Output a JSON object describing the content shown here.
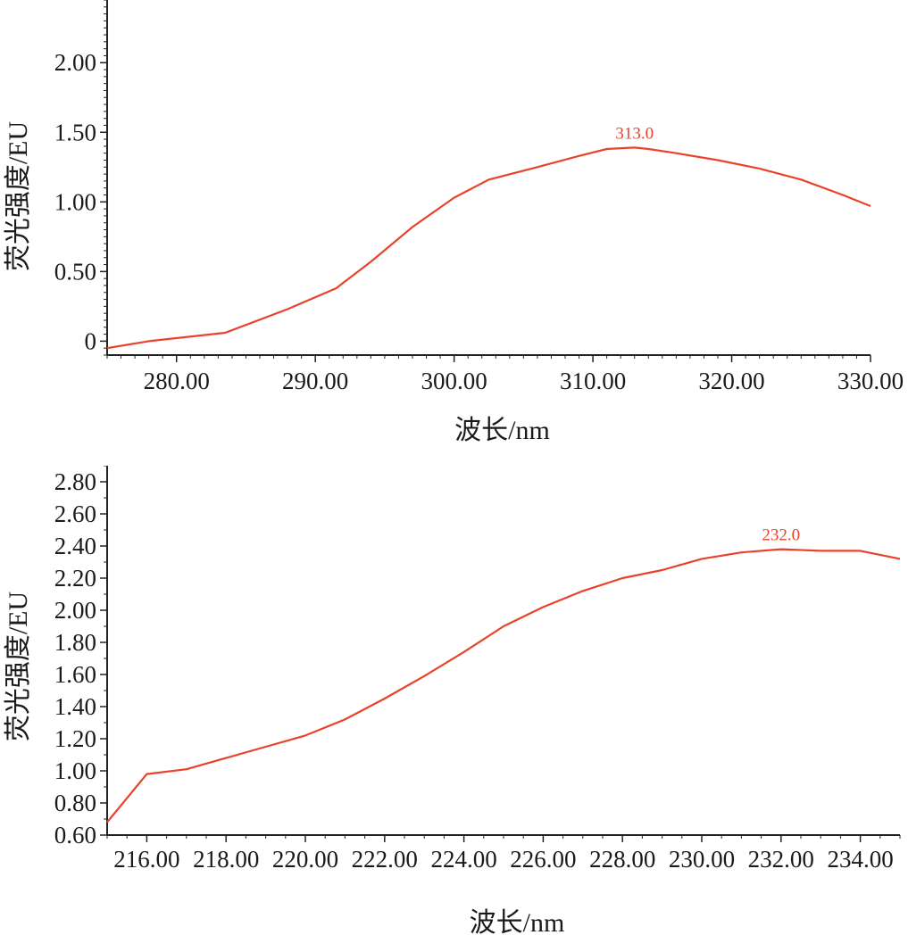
{
  "colors": {
    "series": "#e8432a",
    "axis": "#222222",
    "background": "#ffffff"
  },
  "chart_data": [
    {
      "type": "line",
      "xlabel": "波长/nm",
      "ylabel": "荧光强度/EU",
      "xlim": [
        275,
        330
      ],
      "ylim": [
        -0.1,
        2.45
      ],
      "xticks": [
        280,
        290,
        300,
        310,
        320,
        330
      ],
      "xtick_labels": [
        "280.00",
        "290.00",
        "300.00",
        "310.00",
        "320.00",
        "330.00"
      ],
      "yticks": [
        0,
        0.5,
        1.0,
        1.5,
        2.0
      ],
      "ytick_labels": [
        "0",
        "0.50",
        "1.00",
        "1.50",
        "2.00"
      ],
      "peak": {
        "x": 313.0,
        "y": 1.39,
        "label": "313.0"
      },
      "series": [
        {
          "x": [
            275,
            278,
            283.5,
            288,
            291.5,
            294,
            297,
            300,
            302.5,
            306,
            309,
            311,
            313,
            314,
            316,
            319,
            322,
            325,
            328,
            330
          ],
          "y": [
            -0.05,
            0.0,
            0.06,
            0.23,
            0.38,
            0.57,
            0.82,
            1.03,
            1.16,
            1.25,
            1.33,
            1.38,
            1.39,
            1.38,
            1.35,
            1.3,
            1.24,
            1.16,
            1.05,
            0.97
          ]
        }
      ]
    },
    {
      "type": "line",
      "xlabel": "波长/nm",
      "ylabel": "荧光强度/EU",
      "xlim": [
        215,
        235
      ],
      "ylim": [
        0.6,
        2.9
      ],
      "xticks": [
        216,
        218,
        220,
        222,
        224,
        226,
        228,
        230,
        232,
        234
      ],
      "xtick_labels": [
        "216.00",
        "218.00",
        "220.00",
        "222.00",
        "224.00",
        "226.00",
        "228.00",
        "230.00",
        "232.00",
        "234.00"
      ],
      "yticks": [
        0.6,
        0.8,
        1.0,
        1.2,
        1.4,
        1.6,
        1.8,
        2.0,
        2.2,
        2.4,
        2.6,
        2.8
      ],
      "ytick_labels": [
        "0.60",
        "0.80",
        "1.00",
        "1.20",
        "1.40",
        "1.60",
        "1.80",
        "2.00",
        "2.20",
        "2.40",
        "2.60",
        "2.80"
      ],
      "peak": {
        "x": 232.0,
        "y": 2.38,
        "label": "232.0"
      },
      "series": [
        {
          "x": [
            215,
            216,
            217,
            218,
            219,
            220,
            221,
            222,
            223,
            224,
            225,
            226,
            227,
            228,
            229,
            230,
            231,
            232,
            233,
            234,
            235
          ],
          "y": [
            0.68,
            0.98,
            1.01,
            1.08,
            1.15,
            1.22,
            1.32,
            1.45,
            1.59,
            1.74,
            1.9,
            2.02,
            2.12,
            2.2,
            2.25,
            2.32,
            2.36,
            2.38,
            2.37,
            2.37,
            2.32
          ]
        }
      ]
    }
  ]
}
